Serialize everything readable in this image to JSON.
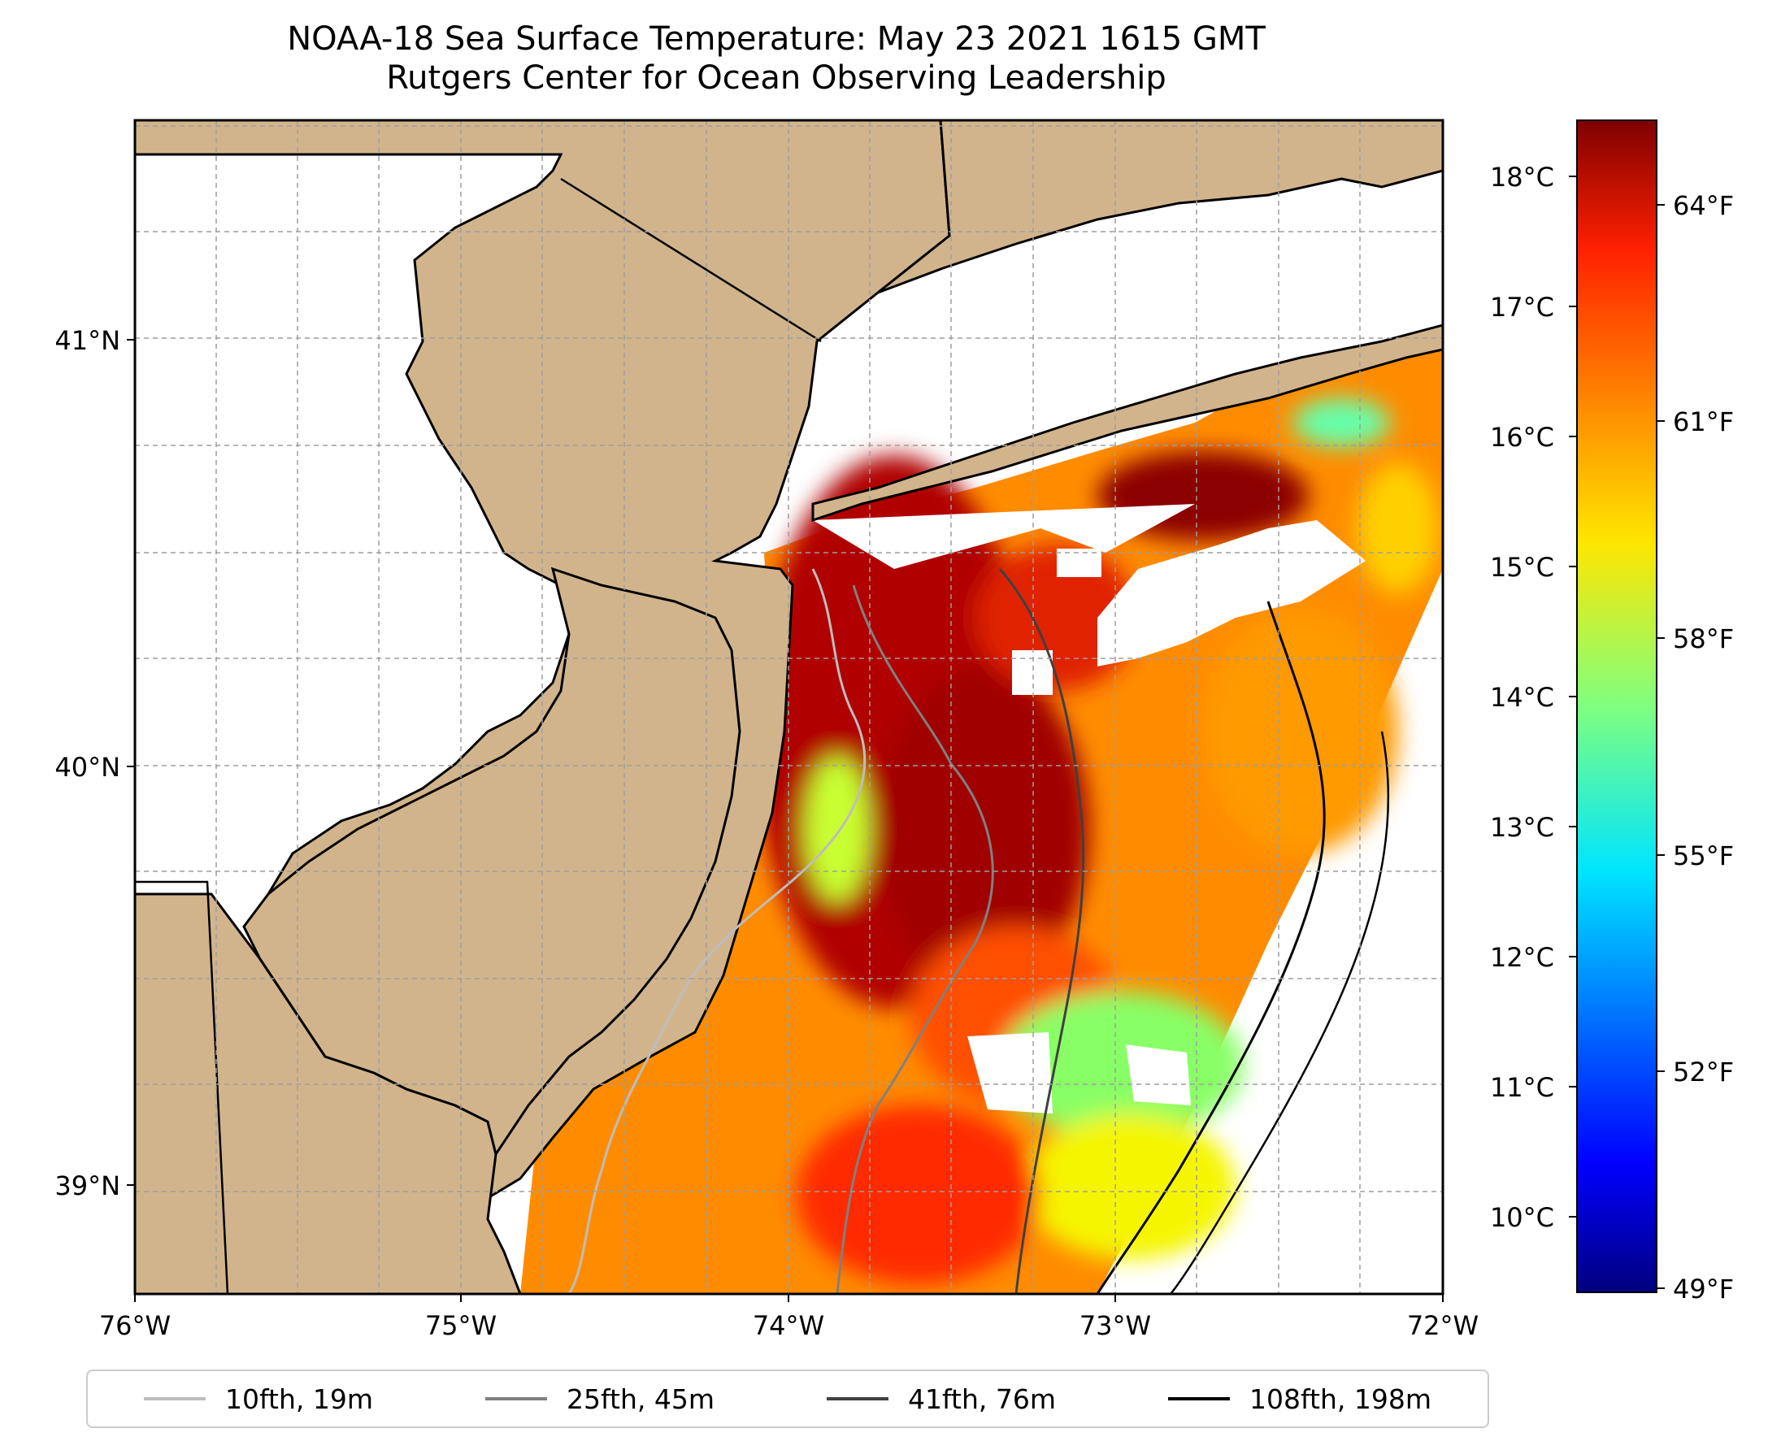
{
  "title": "NOAA-18 Sea Surface Temperature: May 23 2021 1615 GMT",
  "subtitle": "Rutgers Center for Ocean Observing Leadership",
  "map": {
    "lon_ticks": [
      "76°W",
      "75°W",
      "74°W",
      "73°W",
      "72°W"
    ],
    "lat_ticks": [
      "41°N",
      "40°N",
      "39°N"
    ],
    "extent": {
      "lon_min": -76.0,
      "lon_max": -72.0,
      "lat_min": 38.75,
      "lat_max": 41.5
    },
    "land_color": "#d2b48c",
    "grid": true
  },
  "colorbar": {
    "celsius_ticks": [
      "18°C",
      "17°C",
      "16°C",
      "15°C",
      "14°C",
      "13°C",
      "12°C",
      "11°C",
      "10°C"
    ],
    "fahrenheit_ticks": [
      "64°F",
      "61°F",
      "58°F",
      "55°F",
      "52°F",
      "49°F"
    ],
    "range_celsius": [
      9.5,
      18.5
    ],
    "colormap": "jet"
  },
  "legend": [
    {
      "label": "10fth, 19m",
      "color": "#bdbdbd"
    },
    {
      "label": "25fth, 45m",
      "color": "#808080"
    },
    {
      "label": "41fth, 76m",
      "color": "#404040"
    },
    {
      "label": "108fth, 198m",
      "color": "#000000"
    }
  ]
}
